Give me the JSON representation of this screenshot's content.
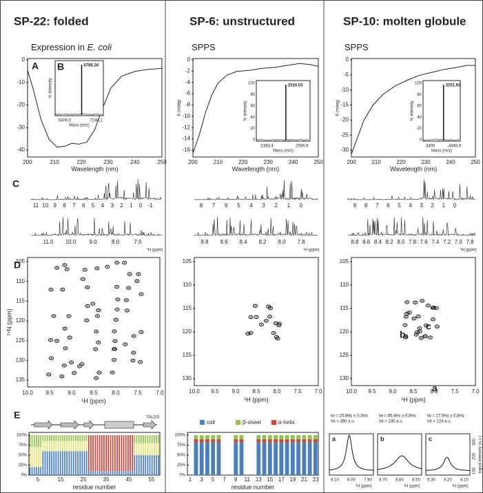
{
  "columns": [
    {
      "title": "SP-22: folded",
      "subtitle": "Expression in ",
      "subtitle_italic": "E. coli",
      "cd": {
        "label": "A",
        "yticks": [
          "0",
          "-10",
          "-20",
          "-30",
          "-40"
        ],
        "xticks": [
          "200",
          "210",
          "220",
          "230",
          "240",
          "250"
        ],
        "xlabel": "Wavelength (nm)"
      },
      "ms": {
        "label": "B",
        "ylabel": "% Intensity",
        "xlabel": "Mass (m/z)",
        "peak": "6766.20",
        "xticks": [
          "5400,0",
          "7240,1"
        ]
      },
      "nmr": {
        "label": "C",
        "ticks": [
          "11",
          "10",
          "9",
          "8",
          "7",
          "6",
          "5",
          "4",
          "3",
          "2",
          "1",
          "0",
          "-1"
        ],
        "zoom_ticks": [
          "11.0",
          "10.0",
          "9.0",
          "8.0",
          "7.0"
        ],
        "xlabel": "¹H (ppm)"
      },
      "hsqc": {
        "label": "D",
        "ylabel": "¹⁵N (ppm)",
        "xlabel": "¹H (ppm)",
        "yticks": [
          "105",
          "110",
          "115",
          "120",
          "125",
          "130",
          "135"
        ],
        "xticks": [
          "10.0",
          "9.5",
          "9.0",
          "8.5",
          "8.0",
          "7.5",
          "7.0"
        ]
      },
      "bottom": {
        "label": "E",
        "tag": "TALOS",
        "yticks": [
          "0%",
          "25%",
          "50%",
          "75%",
          "100%"
        ],
        "xticks": [
          "5",
          "15",
          "25",
          "35",
          "45",
          "55"
        ],
        "xlabel": "residue number"
      }
    },
    {
      "title": "SP-6: unstructured",
      "subtitle": "SPPS",
      "cd": {
        "ylabel": "θ (mdeg)",
        "yticks": [
          "0",
          "-2",
          "-4",
          "-6",
          "-8",
          "-10",
          "-12",
          "-14",
          "-16"
        ],
        "xticks": [
          "200",
          "210",
          "220",
          "230",
          "240",
          "250"
        ],
        "xlabel": "Wavelength (nm)"
      },
      "ms": {
        "ylabel": "% Intensity",
        "xlabel": "Mass (m/z)",
        "peak": "2510.03",
        "yticks": [
          "100",
          "80",
          "60",
          "40",
          "20",
          "0"
        ],
        "xticks": [
          "2393.4",
          "2599.6"
        ]
      },
      "nmr": {
        "ticks": [
          "8",
          "7",
          "6",
          "5",
          "4",
          "3",
          "2",
          "1",
          "0"
        ],
        "zoom_ticks": [
          "8.8",
          "8.6",
          "8.4",
          "8.2",
          "8.0",
          "7.8"
        ],
        "xlabel": "¹H (ppm)"
      },
      "hsqc": {
        "xlabel": "¹H (ppm)",
        "yticks": [
          "105",
          "110",
          "115",
          "120",
          "125",
          "130"
        ],
        "xticks": [
          "10.0",
          "9.5",
          "9.0",
          "8.5",
          "8.0",
          "7.5",
          "7.0"
        ]
      },
      "bottom": {
        "legend": [
          "coil",
          "β-sheet",
          "α-helix"
        ],
        "yticks": [
          "0%",
          "25%",
          "50%",
          "75%",
          "100%"
        ],
        "xticks": [
          "1",
          "3",
          "5",
          "7",
          "9",
          "11",
          "13",
          "15",
          "17",
          "19",
          "21",
          "23"
        ],
        "xlabel": "residue number"
      }
    },
    {
      "title": "SP-10: molten globule",
      "subtitle": "SPPS",
      "cd": {
        "ylabel": "θ (mdeg)",
        "yticks": [
          "0",
          "-5",
          "-10",
          "-15",
          "-20",
          "-25",
          "-30"
        ],
        "xticks": [
          "200",
          "210",
          "220",
          "230",
          "240",
          "250"
        ],
        "xlabel": "Wavelength (nm)"
      },
      "ms": {
        "ylabel": "% Intensity",
        "xlabel": "Mass (m/z)",
        "peak": "3701.93",
        "yticks": [
          "100",
          "80",
          "60",
          "40",
          "20",
          "0"
        ],
        "xticks": [
          "3400",
          "4440,9"
        ]
      },
      "nmr": {
        "ticks": [
          "9",
          "8",
          "7",
          "6",
          "5",
          "4",
          "3",
          "2",
          "1",
          "0"
        ],
        "zoom_ticks": [
          "8.8",
          "8.6",
          "8.4",
          "8.2",
          "8.0",
          "7.8",
          "7.6",
          "7.4",
          "7.2",
          "7.0",
          "7.8"
        ],
        "xlabel": "¹H (ppm)"
      },
      "hsqc": {
        "xlabel": "¹H (ppm)",
        "yticks": [
          "105",
          "110",
          "115",
          "120",
          "125",
          "130"
        ],
        "xticks": [
          "10.0",
          "9.5",
          "9.0",
          "8.5",
          "8.0",
          "7.5",
          "7.0"
        ],
        "peaks": [
          "a",
          "b",
          "c"
        ]
      },
      "bottom": {
        "ylabel": "signal intensity (a.u.)",
        "yticks": [
          "100",
          "200",
          "300"
        ],
        "panels": [
          {
            "label": "a",
            "lw": "lw = 25,8Hz ± 0,3Hz",
            "int": "Int = 360 a.u.",
            "xticks": [
              "8.10",
              "8.00",
              "7.90"
            ],
            "xlabel": "¹H (ppm)"
          },
          {
            "label": "b",
            "lw": "lw = 45,4Hz ± 0,8Hz",
            "int": "Int = 140 a.u.",
            "xticks": [
              "8.70",
              "8.60",
              "8.50"
            ],
            "xlabel": "¹H (ppm)"
          },
          {
            "label": "c",
            "lw": "lw = 27,5Hz ± 0,8Hz",
            "int": "Int = 124 a.u.",
            "xticks": [
              "8.30",
              "8.20",
              "8.10"
            ],
            "xlabel": "¹H (ppm)"
          }
        ]
      }
    }
  ]
}
